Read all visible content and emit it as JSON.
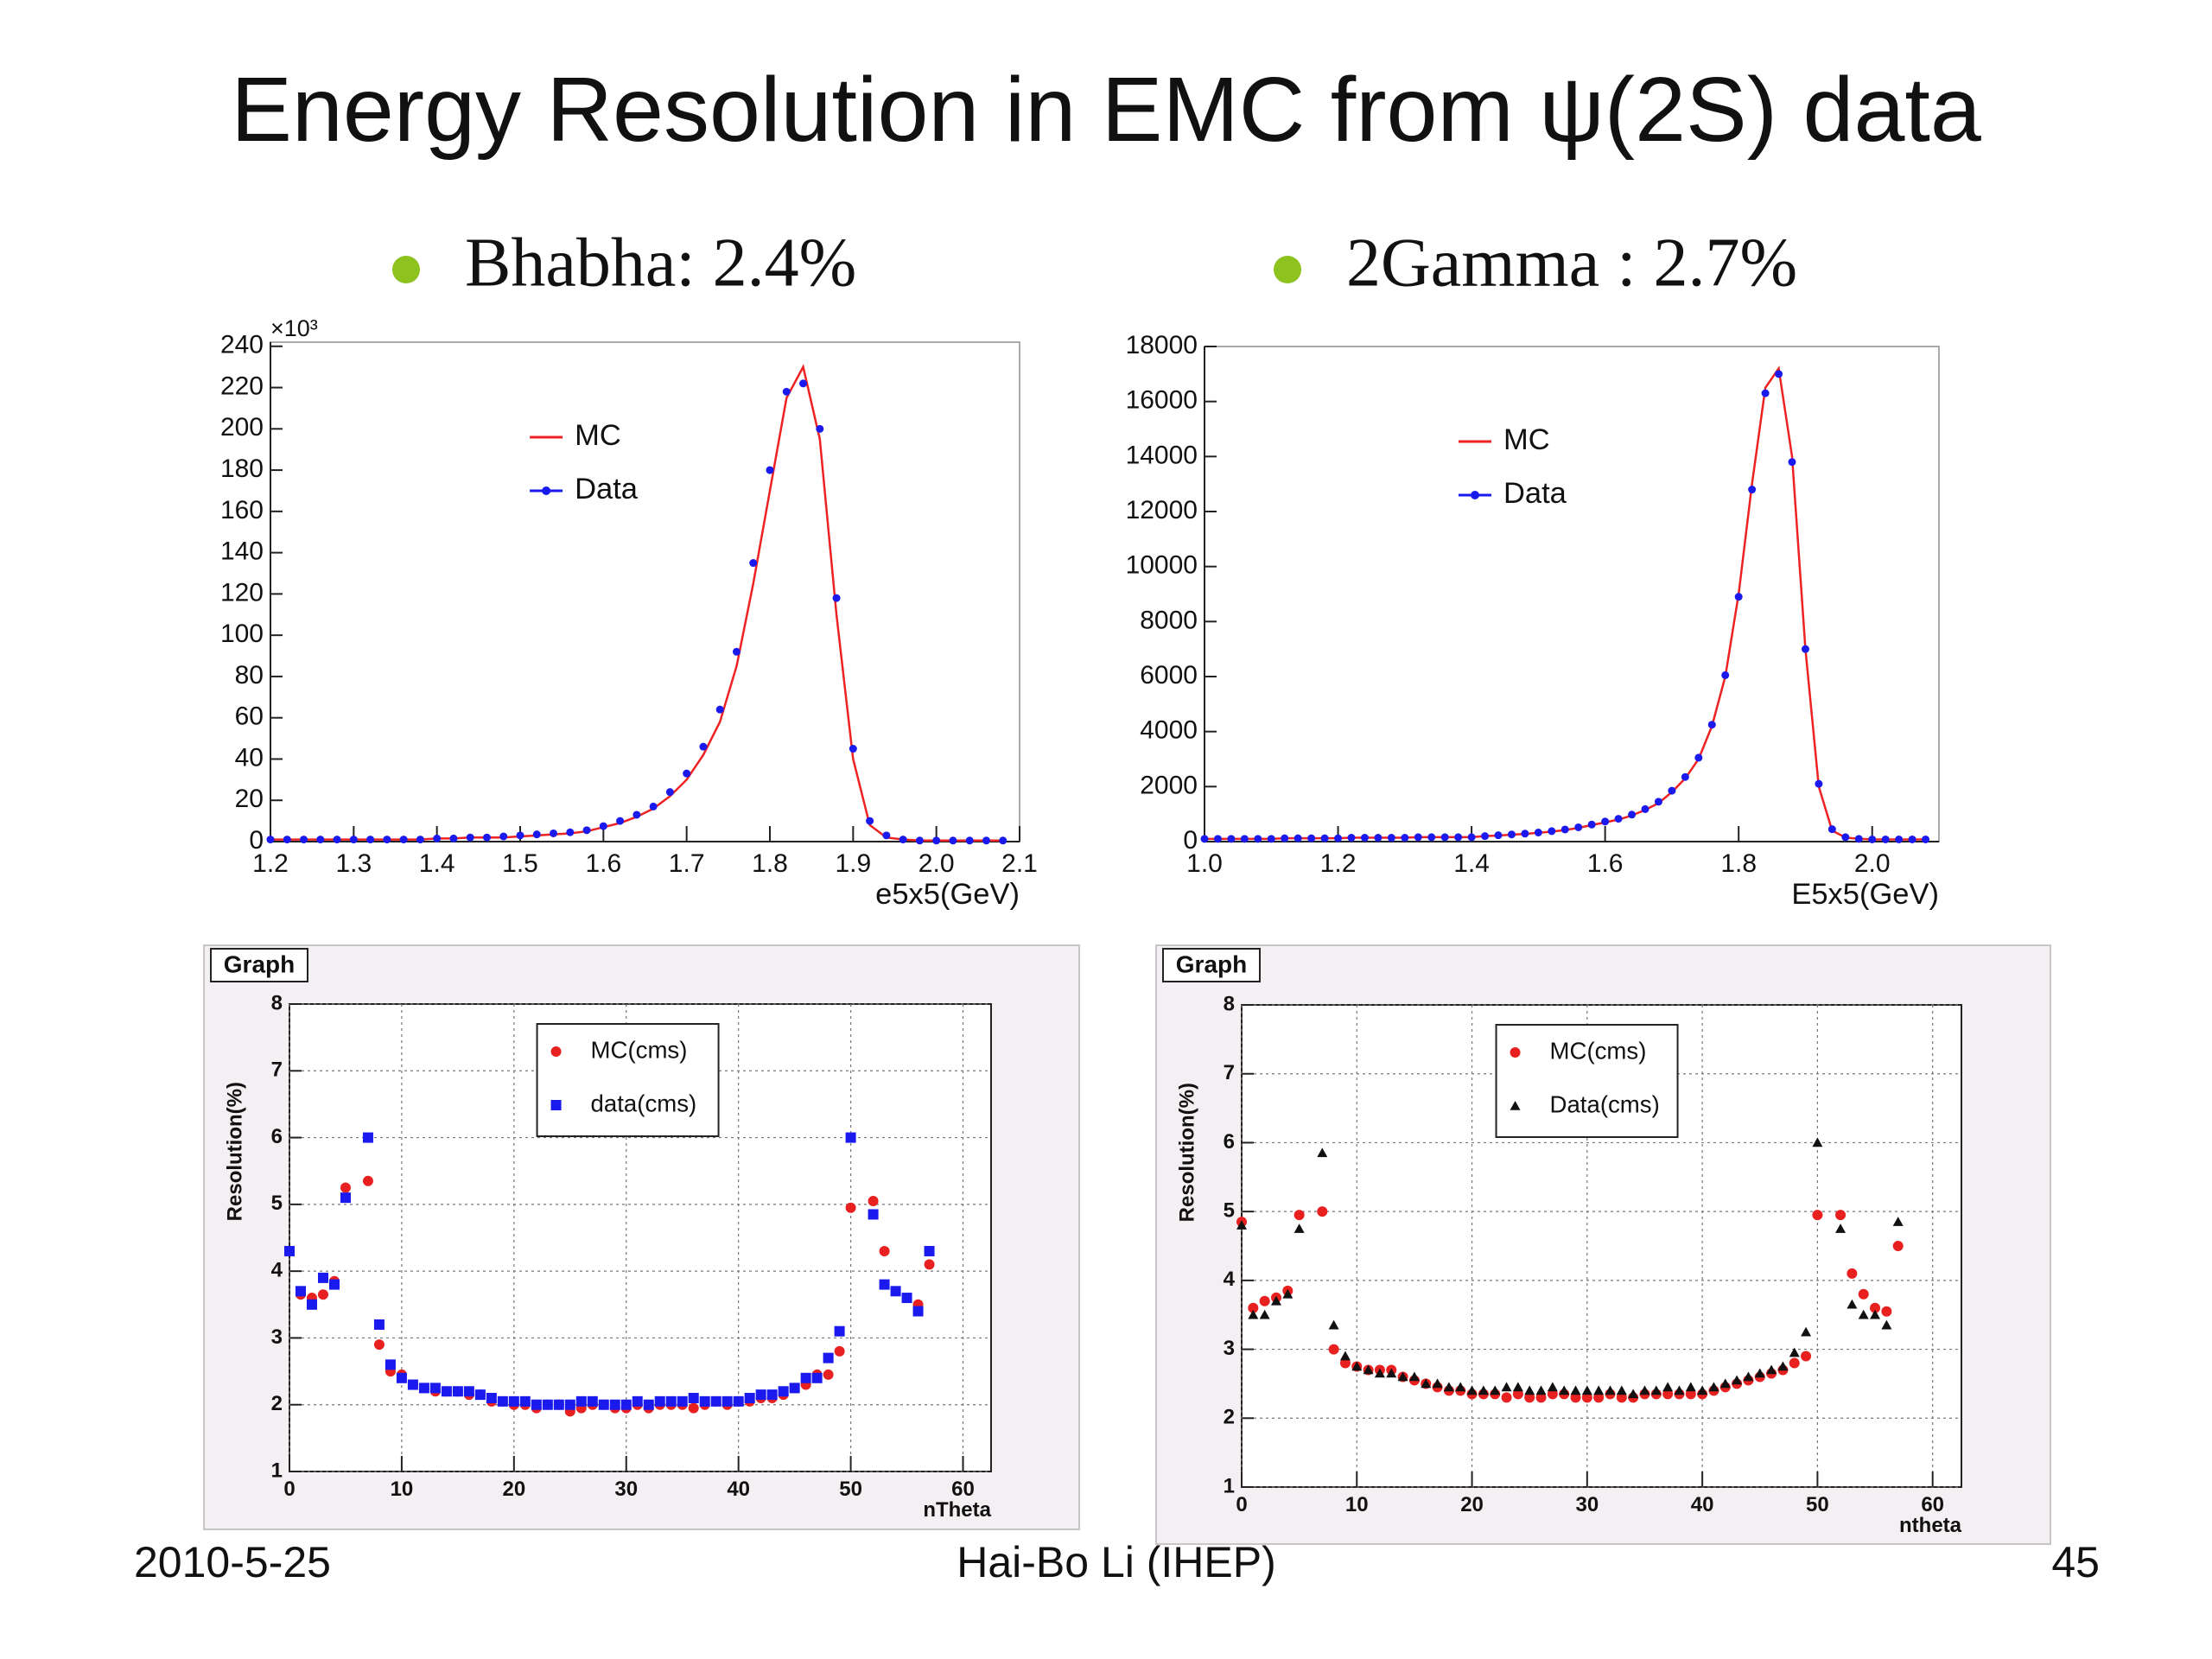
{
  "title": "Energy Resolution in EMC from ψ(2S) data",
  "bullets": [
    "Bhabha: 2.4%",
    "2Gamma :  2.7%"
  ],
  "footer": {
    "date": "2010-5-25",
    "author": "Hai-Bo Li (IHEP)",
    "page": "45"
  },
  "chart_data": [
    {
      "type": "line",
      "xlabel": "e5x5(GeV)",
      "y_multiplier": "×10³",
      "legend": "upper-center",
      "grid": false,
      "xlim": [
        1.2,
        2.1
      ],
      "ylim": [
        0,
        242
      ],
      "xticks": [
        1.2,
        1.3,
        1.4,
        1.5,
        1.6,
        1.7,
        1.8,
        1.9,
        {
          "value": 2,
          "label": "2.0"
        },
        2.1
      ],
      "yticks": [
        0,
        20,
        40,
        60,
        80,
        100,
        120,
        140,
        160,
        180,
        200,
        220,
        240
      ],
      "x": [
        1.2,
        1.22,
        1.24,
        1.26,
        1.28,
        1.3,
        1.32,
        1.34,
        1.36,
        1.38,
        1.4,
        1.42,
        1.44,
        1.46,
        1.48,
        1.5,
        1.52,
        1.54,
        1.56,
        1.58,
        1.6,
        1.62,
        1.64,
        1.66,
        1.68,
        1.7,
        1.72,
        1.74,
        1.76,
        1.78,
        1.8,
        1.82,
        1.84,
        1.86,
        1.88,
        1.9,
        1.92,
        1.94,
        1.96,
        1.98,
        2,
        2.02,
        2.04,
        2.06,
        2.08
      ],
      "series": [
        {
          "name": "MC",
          "color": "#ee2222",
          "style": "line",
          "values": [
            1,
            1,
            1,
            1,
            1,
            1,
            1,
            1,
            1,
            1,
            1.5,
            1.5,
            2,
            2,
            2,
            2.5,
            3,
            3.5,
            4,
            5,
            7,
            9,
            12,
            16,
            22,
            30,
            42,
            58,
            85,
            125,
            170,
            215,
            230,
            195,
            110,
            40,
            8,
            2,
            1,
            0.5,
            0.5,
            0.5,
            0.5,
            0.5,
            0.5
          ]
        },
        {
          "name": "Data",
          "color": "#1a1aee",
          "style": "points",
          "values": [
            1,
            1,
            1,
            1,
            1,
            1,
            1,
            1,
            1,
            1,
            1.5,
            1.5,
            2,
            2,
            2.5,
            3,
            3.5,
            4,
            4.5,
            5.5,
            7.5,
            10,
            13,
            17,
            24,
            33,
            46,
            64,
            92,
            135,
            180,
            218,
            222,
            200,
            118,
            45,
            10,
            3,
            1,
            0.5,
            0.5,
            0.5,
            0.5,
            0.5,
            0.5
          ]
        }
      ]
    },
    {
      "type": "line",
      "xlabel": "E5x5(GeV)",
      "legend": "upper-center",
      "grid": false,
      "xlim": [
        1.0,
        2.1
      ],
      "ylim": [
        0,
        18000
      ],
      "xticks": [
        {
          "value": 1,
          "label": "1.0"
        },
        1.2,
        1.4,
        1.6,
        1.8,
        {
          "value": 2,
          "label": "2.0"
        }
      ],
      "yticks": [
        0,
        2000,
        4000,
        6000,
        8000,
        10000,
        12000,
        14000,
        16000,
        18000
      ],
      "x": [
        1,
        1.02,
        1.04,
        1.06,
        1.08,
        1.1,
        1.12,
        1.14,
        1.16,
        1.18,
        1.2,
        1.22,
        1.24,
        1.26,
        1.28,
        1.3,
        1.32,
        1.34,
        1.36,
        1.38,
        1.4,
        1.42,
        1.44,
        1.46,
        1.48,
        1.5,
        1.52,
        1.54,
        1.56,
        1.58,
        1.6,
        1.62,
        1.64,
        1.66,
        1.68,
        1.7,
        1.72,
        1.74,
        1.76,
        1.78,
        1.8,
        1.82,
        1.84,
        1.86,
        1.88,
        1.9,
        1.92,
        1.94,
        1.96,
        1.98,
        2,
        2.02,
        2.04,
        2.06,
        2.08
      ],
      "series": [
        {
          "name": "MC",
          "color": "#ee2222",
          "style": "line",
          "values": [
            100,
            100,
            100,
            100,
            100,
            100,
            120,
            120,
            120,
            120,
            120,
            140,
            140,
            140,
            140,
            140,
            160,
            160,
            160,
            160,
            160,
            200,
            220,
            250,
            280,
            320,
            360,
            420,
            500,
            600,
            700,
            800,
            950,
            1150,
            1400,
            1800,
            2300,
            3000,
            4200,
            6000,
            9000,
            13000,
            16500,
            17200,
            14000,
            7000,
            2000,
            400,
            150,
            100,
            80,
            80,
            80,
            80,
            80
          ]
        },
        {
          "name": "Data",
          "color": "#1a1aee",
          "style": "points",
          "values": [
            100,
            100,
            100,
            100,
            100,
            100,
            120,
            120,
            120,
            120,
            120,
            140,
            140,
            140,
            140,
            140,
            160,
            160,
            160,
            160,
            160,
            200,
            230,
            260,
            290,
            330,
            380,
            440,
            520,
            620,
            730,
            830,
            980,
            1180,
            1450,
            1850,
            2350,
            3050,
            4250,
            6050,
            8900,
            12800,
            16300,
            17000,
            13800,
            7000,
            2100,
            450,
            160,
            100,
            80,
            80,
            80,
            80,
            80
          ]
        }
      ]
    },
    {
      "type": "scatter",
      "box_label": "Graph",
      "xlabel": "nTheta",
      "ylabel": "Resolution(%)",
      "legend": "upper-center",
      "grid": true,
      "xlim": [
        0,
        62.5
      ],
      "ylim": [
        1,
        8
      ],
      "xticks": [
        0,
        10,
        20,
        30,
        40,
        50,
        60
      ],
      "yticks": [
        1,
        2,
        3,
        4,
        5,
        6,
        7,
        8
      ],
      "x": [
        0,
        1,
        2,
        3,
        4,
        5,
        6,
        7,
        8,
        9,
        10,
        11,
        12,
        13,
        14,
        15,
        16,
        17,
        18,
        19,
        20,
        21,
        22,
        23,
        24,
        25,
        26,
        27,
        28,
        29,
        30,
        31,
        32,
        33,
        34,
        35,
        36,
        37,
        38,
        39,
        40,
        41,
        42,
        43,
        44,
        45,
        46,
        47,
        48,
        49,
        50,
        51,
        52,
        53,
        54,
        55,
        56,
        57
      ],
      "series": [
        {
          "name": "MC(cms)",
          "color": "#e82020",
          "marker": "circle",
          "values": [
            null,
            3.65,
            3.6,
            3.65,
            3.85,
            5.25,
            null,
            5.35,
            2.9,
            2.5,
            2.45,
            2.3,
            2.25,
            2.2,
            2.2,
            2.2,
            2.15,
            2.15,
            2.05,
            2.05,
            2.0,
            2.0,
            1.95,
            2.0,
            2.0,
            1.9,
            1.95,
            2.0,
            2.0,
            1.95,
            1.95,
            2.0,
            1.95,
            2.0,
            2.0,
            2.0,
            1.95,
            2.0,
            2.05,
            2.0,
            2.05,
            2.05,
            2.1,
            2.1,
            2.15,
            2.25,
            2.3,
            2.45,
            2.45,
            2.8,
            4.95,
            null,
            5.05,
            4.3,
            null,
            null,
            3.5,
            4.1
          ]
        },
        {
          "name": "data(cms)",
          "color": "#1a1aee",
          "marker": "square",
          "values": [
            4.3,
            3.7,
            3.5,
            3.9,
            3.8,
            5.1,
            null,
            6.0,
            3.2,
            2.6,
            2.4,
            2.3,
            2.25,
            2.25,
            2.2,
            2.2,
            2.2,
            2.15,
            2.1,
            2.05,
            2.05,
            2.05,
            2.0,
            2.0,
            2.0,
            2.0,
            2.05,
            2.05,
            2.0,
            2.0,
            2.0,
            2.05,
            2.0,
            2.05,
            2.05,
            2.05,
            2.1,
            2.05,
            2.05,
            2.05,
            2.05,
            2.1,
            2.15,
            2.15,
            2.2,
            2.25,
            2.4,
            2.4,
            2.7,
            3.1,
            6.0,
            null,
            4.85,
            3.8,
            3.7,
            3.6,
            3.4,
            4.3
          ]
        }
      ]
    },
    {
      "type": "scatter",
      "box_label": "Graph",
      "xlabel": "ntheta",
      "ylabel": "Resolution(%)",
      "legend": "upper-center",
      "grid": true,
      "xlim": [
        0,
        62.5
      ],
      "ylim": [
        1,
        8
      ],
      "xticks": [
        0,
        10,
        20,
        30,
        40,
        50,
        60
      ],
      "yticks": [
        1,
        2,
        3,
        4,
        5,
        6,
        7,
        8
      ],
      "x": [
        0,
        1,
        2,
        3,
        4,
        5,
        6,
        7,
        8,
        9,
        10,
        11,
        12,
        13,
        14,
        15,
        16,
        17,
        18,
        19,
        20,
        21,
        22,
        23,
        24,
        25,
        26,
        27,
        28,
        29,
        30,
        31,
        32,
        33,
        34,
        35,
        36,
        37,
        38,
        39,
        40,
        41,
        42,
        43,
        44,
        45,
        46,
        47,
        48,
        49,
        50,
        51,
        52,
        53,
        54,
        55,
        56,
        57
      ],
      "series": [
        {
          "name": "MC(cms)",
          "color": "#e82020",
          "marker": "circle",
          "values": [
            4.85,
            3.6,
            3.7,
            3.75,
            3.85,
            4.95,
            null,
            5.0,
            3.0,
            2.8,
            2.75,
            2.7,
            2.7,
            2.7,
            2.6,
            2.55,
            2.5,
            2.45,
            2.4,
            2.4,
            2.35,
            2.35,
            2.35,
            2.3,
            2.35,
            2.3,
            2.3,
            2.35,
            2.35,
            2.3,
            2.3,
            2.3,
            2.35,
            2.3,
            2.3,
            2.35,
            2.35,
            2.35,
            2.35,
            2.35,
            2.35,
            2.4,
            2.45,
            2.5,
            2.55,
            2.6,
            2.65,
            2.7,
            2.8,
            2.9,
            4.95,
            null,
            4.95,
            4.1,
            3.8,
            3.6,
            3.55,
            4.5
          ]
        },
        {
          "name": "Data(cms)",
          "color": "#111111",
          "marker": "triangle",
          "values": [
            4.8,
            3.5,
            3.5,
            3.7,
            3.8,
            4.75,
            null,
            5.85,
            3.35,
            2.9,
            2.75,
            2.7,
            2.65,
            2.65,
            2.6,
            2.6,
            2.5,
            2.5,
            2.45,
            2.45,
            2.4,
            2.4,
            2.4,
            2.45,
            2.45,
            2.4,
            2.4,
            2.45,
            2.4,
            2.4,
            2.4,
            2.4,
            2.4,
            2.4,
            2.35,
            2.4,
            2.4,
            2.45,
            2.4,
            2.45,
            2.4,
            2.45,
            2.5,
            2.55,
            2.6,
            2.65,
            2.7,
            2.75,
            2.95,
            3.25,
            6.0,
            null,
            4.75,
            3.65,
            3.5,
            3.5,
            3.35,
            4.85
          ]
        }
      ]
    }
  ]
}
